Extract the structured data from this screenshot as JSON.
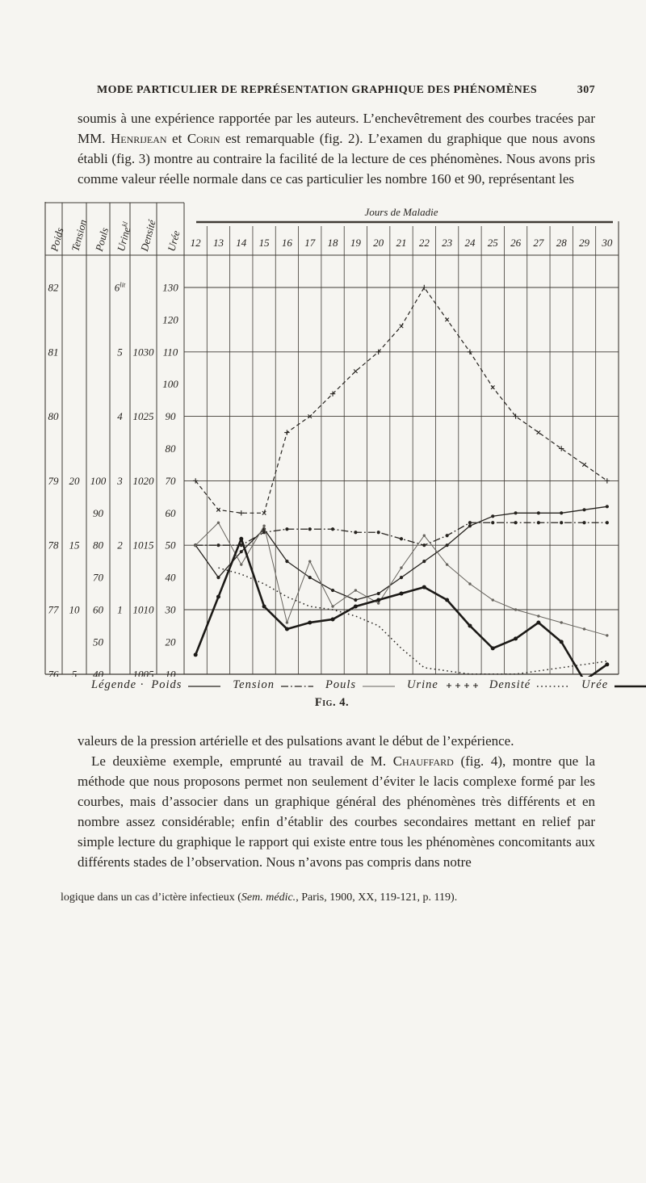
{
  "page": {
    "running_header": {
      "title": "MODE PARTICULIER DE REPRÉSENTATION GRAPHIQUE DES PHÉNOMÈNES",
      "page_number": "307"
    },
    "paragraphs": {
      "p1_before": "soumis à une expérience rapportée par les auteurs. L’enchevêtrement des courbes tracées par MM. ",
      "p1_name1": "Henrijean",
      "p1_mid": " et ",
      "p1_name2": "Corin",
      "p1_after": " est remarquable (fig. 2). L’examen du graphique que nous avons établi (fig. 3) montre au contraire la facilité de la lecture de ces phénomènes. Nous avons pris comme valeur réelle normale dans ce cas particulier les nombre 160 et 90, représentant les",
      "p2": "valeurs de la pression artérielle et des pulsations avant le début de l’expérience.",
      "p3_before": "Le deuxième exemple, emprunté au travail de M. ",
      "p3_name": "Chauffard",
      "p3_after": " (fig. 4), montre que la méthode que nous proposons permet non seulement d’éviter le lacis complexe formé par les courbes, mais d’associer dans un graphique général des phénomènes très différents et en nombre assez considérable; enfin d’établir des courbes secondaires mettant en relief par simple lecture du graphique le rapport qui existe entre tous les phénomènes concomitants aux différents stades de l’observation. Nous n’avons pas compris dans notre"
    },
    "footnote": {
      "before": "logique dans un cas d’ictère infectieux (",
      "italic": "Sem. médic.",
      "after": ", Paris, 1900, XX, 119-121, p. 119)."
    },
    "figure_caption": "Fig. 4."
  },
  "chart_data": {
    "type": "line",
    "title": "Jours de Maladie",
    "days": [
      12,
      13,
      14,
      15,
      16,
      17,
      18,
      19,
      20,
      21,
      22,
      23,
      24,
      25,
      26,
      27,
      28,
      29,
      30
    ],
    "grid_axis": {
      "min": 10,
      "max": 130,
      "tick_step": 10,
      "gridline_every": 20,
      "note": "shared hand-ruled grid; each variable is read on its own scale column at left"
    },
    "axis_columns": [
      {
        "id": "poids",
        "label": "Poids",
        "ticks": [
          {
            "g": 130,
            "t": "82"
          },
          {
            "g": 110,
            "t": "81"
          },
          {
            "g": 90,
            "t": "80"
          },
          {
            "g": 70,
            "t": "79"
          },
          {
            "g": 50,
            "t": "78"
          },
          {
            "g": 30,
            "t": "77"
          },
          {
            "g": 10,
            "t": "76"
          }
        ]
      },
      {
        "id": "tension",
        "label": "Tension",
        "ticks": [
          {
            "g": 70,
            "t": "20"
          },
          {
            "g": 50,
            "t": "15"
          },
          {
            "g": 30,
            "t": "10"
          },
          {
            "g": 10,
            "t": "5"
          }
        ]
      },
      {
        "id": "pouls",
        "label": "Pouls",
        "ticks": [
          {
            "g": 70,
            "t": "100"
          },
          {
            "g": 60,
            "t": "90"
          },
          {
            "g": 50,
            "t": "80"
          },
          {
            "g": 40,
            "t": "70"
          },
          {
            "g": 30,
            "t": "60"
          },
          {
            "g": 20,
            "t": "50"
          },
          {
            "g": 10,
            "t": "40"
          }
        ]
      },
      {
        "id": "urine",
        "label": "Urine^kl",
        "ticks": [
          {
            "g": 130,
            "t": "6^lit"
          },
          {
            "g": 110,
            "t": "5"
          },
          {
            "g": 90,
            "t": "4"
          },
          {
            "g": 70,
            "t": "3"
          },
          {
            "g": 50,
            "t": "2"
          },
          {
            "g": 30,
            "t": "1"
          }
        ]
      },
      {
        "id": "densite",
        "label": "Densité",
        "ticks": [
          {
            "g": 110,
            "t": "1030"
          },
          {
            "g": 90,
            "t": "1025"
          },
          {
            "g": 70,
            "t": "1020"
          },
          {
            "g": 50,
            "t": "1015"
          },
          {
            "g": 30,
            "t": "1010"
          },
          {
            "g": 10,
            "t": "1005"
          }
        ]
      },
      {
        "id": "uree",
        "label": "Urée",
        "ticks": [
          {
            "g": 130,
            "t": "130"
          },
          {
            "g": 120,
            "t": "120"
          },
          {
            "g": 110,
            "t": "110"
          },
          {
            "g": 100,
            "t": "100"
          },
          {
            "g": 90,
            "t": "90"
          },
          {
            "g": 80,
            "t": "80"
          },
          {
            "g": 70,
            "t": "70"
          },
          {
            "g": 60,
            "t": "60"
          },
          {
            "g": 50,
            "t": "50"
          },
          {
            "g": 40,
            "t": "40"
          },
          {
            "g": 30,
            "t": "30"
          },
          {
            "g": 20,
            "t": "20"
          },
          {
            "g": 10,
            "t": "10"
          }
        ]
      }
    ],
    "series": [
      {
        "id": "poids",
        "name": "Poids",
        "style": "solid",
        "width": 1.3,
        "marker": "dot",
        "color": "#26231f",
        "scale_hint": "kg 82–76 mapped to grid 130–10",
        "values_grid": [
          50,
          40,
          48,
          55,
          45,
          40,
          36,
          33,
          35,
          40,
          45,
          50,
          56,
          59,
          60,
          60,
          60,
          61,
          62
        ]
      },
      {
        "id": "tension",
        "name": "Tension",
        "style": "dashdot",
        "width": 1.3,
        "marker": "dot",
        "color": "#26231f",
        "scale_hint": "tension 20–5 mapped to grid 70–10",
        "values_grid": [
          50,
          50,
          50,
          54,
          55,
          55,
          55,
          54,
          54,
          52,
          50,
          53,
          57,
          57,
          57,
          57,
          57,
          57,
          57
        ]
      },
      {
        "id": "pouls",
        "name": "Pouls",
        "style": "solid",
        "width": 1,
        "marker": "dot",
        "color": "#67645e",
        "scale_hint": "pulse 100–40 mapped to grid 70–10",
        "values_grid": [
          50,
          57,
          44,
          56,
          26,
          45,
          31,
          36,
          32,
          43,
          53,
          44,
          38,
          33,
          30,
          28,
          26,
          24,
          22
        ]
      },
      {
        "id": "urine",
        "name": "Urine",
        "style": "dashed",
        "width": 1.2,
        "marker": "plus",
        "color": "#26231f",
        "scale_hint": "urine 6–1 lit mapped to grid 130–30",
        "values_grid": [
          70,
          61,
          60,
          60,
          85,
          90,
          97,
          104,
          110,
          118,
          130,
          120,
          110,
          99,
          90,
          85,
          80,
          75,
          70
        ]
      },
      {
        "id": "densite",
        "name": "Densité",
        "style": "dotted",
        "width": 1.5,
        "marker": "none",
        "color": "#2b2824",
        "scale_hint": "densité 1030–1005 mapped to grid 110–10",
        "values_grid": [
          null,
          43,
          41,
          38,
          34,
          31,
          30,
          28,
          25,
          18,
          12,
          11,
          10,
          10,
          10,
          11,
          12,
          13,
          14
        ]
      },
      {
        "id": "uree",
        "name": "Urée",
        "style": "solid",
        "width": 2.6,
        "marker": "dot",
        "color": "#1c1a17",
        "scale_hint": "urée 130–10 mapped to grid 130–10",
        "values_grid": [
          16,
          34,
          52,
          31,
          24,
          26,
          27,
          31,
          33,
          35,
          37,
          33,
          25,
          18,
          21,
          26,
          20,
          8,
          13
        ]
      }
    ],
    "legend": {
      "label": "Légende ·",
      "items": [
        {
          "series": "poids",
          "name": "Poids"
        },
        {
          "series": "tension",
          "name": "Tension"
        },
        {
          "series": "pouls",
          "name": "Pouls"
        },
        {
          "series": "urine",
          "name": "Urine"
        },
        {
          "series": "densite",
          "name": "Densité"
        },
        {
          "series": "uree",
          "name": "Urée"
        }
      ]
    }
  }
}
